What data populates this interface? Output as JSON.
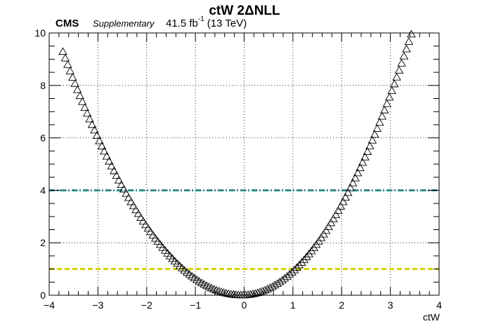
{
  "chart_data": {
    "type": "scatter",
    "title": "ctW 2ΔNLL",
    "experiment": "CMS",
    "status": "Supplementary",
    "lumi": {
      "value": "41.5 fb",
      "superscript": "-1",
      "energy": "(13 TeV)"
    },
    "xlabel": "ctW",
    "ylabel": "",
    "xlim": [
      -4,
      4
    ],
    "ylim": [
      0,
      10
    ],
    "x_ticks": [
      -4,
      -3,
      -2,
      -1,
      0,
      1,
      2,
      3,
      4
    ],
    "x_tick_labels": [
      "−4",
      "−3",
      "−2",
      "−1",
      "0",
      "1",
      "2",
      "3",
      "4"
    ],
    "y_ticks": [
      0,
      2,
      4,
      6,
      8,
      10
    ],
    "y_tick_labels": [
      "0",
      "2",
      "4",
      "6",
      "8",
      "10"
    ],
    "grid": true,
    "series": [
      {
        "marker": "open-triangle",
        "color": "#000000",
        "x_min": -3.72,
        "x_max": 3.45,
        "x_step": 0.05,
        "model": "parabola",
        "a_left": 0.6893,
        "a_right": 0.8214,
        "x0": -0.05
      }
    ],
    "reference_lines": [
      {
        "y": 4,
        "color": "#2e8b8b",
        "style": "dash-dot"
      },
      {
        "y": 1,
        "color": "#d4d400",
        "style": "dashed"
      }
    ]
  }
}
